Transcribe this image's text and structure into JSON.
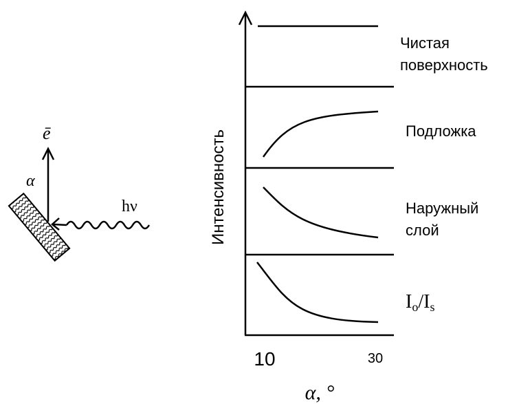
{
  "scheme": {
    "electron_label": "ē",
    "angle_label": "α",
    "photon_label": "hν"
  },
  "plot": {
    "y_axis_label": "Интенсивность",
    "x_tick_labels": [
      "10",
      "30"
    ],
    "x_axis_label": "α, °",
    "panels": [
      {
        "label": [
          "Чистая",
          "поверхность"
        ]
      },
      {
        "label": [
          "Подложка"
        ]
      },
      {
        "label": [
          "Наружный",
          "слой"
        ]
      },
      {
        "label": [
          "I",
          "o",
          "/I",
          "s"
        ]
      }
    ]
  }
}
